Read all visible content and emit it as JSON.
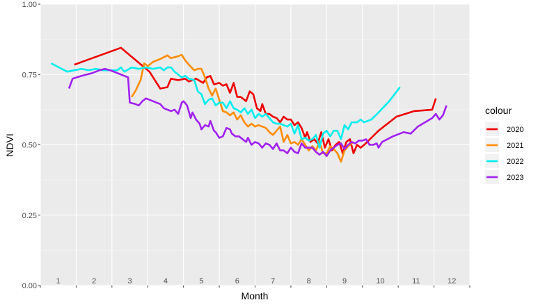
{
  "chart_data": {
    "type": "line",
    "xlabel": "Month",
    "ylabel": "NDVI",
    "ylim": [
      0,
      1
    ],
    "xlim": [
      0.55,
      12.55
    ],
    "x_tick_labels": [
      "1",
      "2",
      "3",
      "4",
      "5",
      "6",
      "7",
      "8",
      "9",
      "10",
      "11",
      "12"
    ],
    "y_ticks": [
      0.0,
      0.25,
      0.5,
      0.75,
      1.0
    ],
    "y_tick_labels": [
      "0.00",
      "0.25",
      "0.50",
      "0.75",
      "1.00"
    ],
    "grid": true,
    "legend_title": "colour",
    "legend_position": "right",
    "series": [
      {
        "name": "2020",
        "color": "#ee0000",
        "points": [
          [
            1.5,
            0.785
          ],
          [
            2.8,
            0.845
          ],
          [
            3.6,
            0.76
          ],
          [
            3.9,
            0.7
          ],
          [
            4.1,
            0.705
          ],
          [
            4.2,
            0.735
          ],
          [
            4.4,
            0.73
          ],
          [
            4.6,
            0.735
          ],
          [
            4.7,
            0.725
          ],
          [
            4.9,
            0.735
          ],
          [
            5.1,
            0.72
          ],
          [
            5.2,
            0.74
          ],
          [
            5.3,
            0.745
          ],
          [
            5.4,
            0.715
          ],
          [
            5.55,
            0.72
          ],
          [
            5.65,
            0.71
          ],
          [
            5.75,
            0.715
          ],
          [
            5.85,
            0.685
          ],
          [
            5.95,
            0.72
          ],
          [
            6.05,
            0.67
          ],
          [
            6.15,
            0.67
          ],
          [
            6.3,
            0.655
          ],
          [
            6.4,
            0.69
          ],
          [
            6.5,
            0.68
          ],
          [
            6.6,
            0.63
          ],
          [
            6.7,
            0.62
          ],
          [
            6.75,
            0.645
          ],
          [
            6.85,
            0.61
          ],
          [
            6.95,
            0.61
          ],
          [
            7.05,
            0.6
          ],
          [
            7.15,
            0.595
          ],
          [
            7.25,
            0.58
          ],
          [
            7.35,
            0.6
          ],
          [
            7.45,
            0.59
          ],
          [
            7.55,
            0.59
          ],
          [
            7.65,
            0.57
          ],
          [
            7.75,
            0.58
          ],
          [
            7.85,
            0.56
          ],
          [
            7.95,
            0.525
          ],
          [
            8.0,
            0.545
          ],
          [
            8.1,
            0.51
          ],
          [
            8.2,
            0.52
          ],
          [
            8.3,
            0.505
          ],
          [
            8.4,
            0.545
          ],
          [
            8.5,
            0.49
          ],
          [
            8.6,
            0.52
          ],
          [
            8.7,
            0.48
          ],
          [
            8.8,
            0.5
          ],
          [
            8.9,
            0.51
          ],
          [
            9.0,
            0.47
          ],
          [
            9.1,
            0.51
          ],
          [
            9.2,
            0.52
          ],
          [
            9.3,
            0.47
          ],
          [
            9.4,
            0.5
          ],
          [
            9.5,
            0.49
          ],
          [
            9.6,
            0.5
          ],
          [
            10.0,
            0.55
          ],
          [
            10.5,
            0.6
          ],
          [
            11.0,
            0.62
          ],
          [
            11.5,
            0.625
          ],
          [
            11.6,
            0.665
          ]
        ]
      },
      {
        "name": "2021",
        "color": "#ff8c00",
        "points": [
          [
            3.1,
            0.67
          ],
          [
            3.2,
            0.69
          ],
          [
            3.35,
            0.73
          ],
          [
            3.45,
            0.79
          ],
          [
            3.55,
            0.78
          ],
          [
            3.7,
            0.795
          ],
          [
            3.9,
            0.805
          ],
          [
            4.1,
            0.818
          ],
          [
            4.2,
            0.808
          ],
          [
            4.4,
            0.815
          ],
          [
            4.5,
            0.82
          ],
          [
            4.6,
            0.8
          ],
          [
            4.7,
            0.785
          ],
          [
            4.85,
            0.765
          ],
          [
            4.95,
            0.77
          ],
          [
            5.05,
            0.77
          ],
          [
            5.15,
            0.74
          ],
          [
            5.25,
            0.7
          ],
          [
            5.35,
            0.675
          ],
          [
            5.45,
            0.7
          ],
          [
            5.55,
            0.66
          ],
          [
            5.65,
            0.62
          ],
          [
            5.75,
            0.615
          ],
          [
            5.85,
            0.605
          ],
          [
            5.95,
            0.615
          ],
          [
            6.05,
            0.59
          ],
          [
            6.15,
            0.605
          ],
          [
            6.25,
            0.58
          ],
          [
            6.35,
            0.565
          ],
          [
            6.45,
            0.575
          ],
          [
            6.55,
            0.565
          ],
          [
            6.65,
            0.57
          ],
          [
            6.75,
            0.565
          ],
          [
            6.85,
            0.56
          ],
          [
            6.95,
            0.545
          ],
          [
            7.05,
            0.535
          ],
          [
            7.15,
            0.55
          ],
          [
            7.25,
            0.565
          ],
          [
            7.35,
            0.51
          ],
          [
            7.45,
            0.535
          ],
          [
            7.55,
            0.505
          ],
          [
            7.65,
            0.51
          ],
          [
            7.75,
            0.5
          ],
          [
            7.85,
            0.52
          ],
          [
            7.95,
            0.5
          ],
          [
            8.05,
            0.48
          ],
          [
            8.15,
            0.495
          ],
          [
            8.25,
            0.48
          ],
          [
            8.35,
            0.51
          ],
          [
            8.45,
            0.47
          ],
          [
            8.55,
            0.47
          ],
          [
            8.65,
            0.495
          ],
          [
            8.75,
            0.485
          ],
          [
            8.85,
            0.47
          ],
          [
            8.95,
            0.44
          ],
          [
            9.05,
            0.48
          ],
          [
            9.15,
            0.495
          ],
          [
            9.3,
            0.51
          ]
        ]
      },
      {
        "name": "2022",
        "color": "#00eeee",
        "points": [
          [
            0.85,
            0.79
          ],
          [
            1.3,
            0.76
          ],
          [
            1.5,
            0.765
          ],
          [
            1.7,
            0.77
          ],
          [
            1.9,
            0.765
          ],
          [
            2.1,
            0.77
          ],
          [
            2.3,
            0.765
          ],
          [
            2.5,
            0.765
          ],
          [
            2.7,
            0.765
          ],
          [
            2.8,
            0.775
          ],
          [
            2.9,
            0.76
          ],
          [
            3.1,
            0.775
          ],
          [
            3.3,
            0.77
          ],
          [
            3.5,
            0.775
          ],
          [
            3.7,
            0.77
          ],
          [
            3.9,
            0.775
          ],
          [
            4.0,
            0.765
          ],
          [
            4.1,
            0.775
          ],
          [
            4.2,
            0.775
          ],
          [
            4.3,
            0.76
          ],
          [
            4.5,
            0.74
          ],
          [
            4.6,
            0.745
          ],
          [
            4.7,
            0.735
          ],
          [
            4.85,
            0.73
          ],
          [
            4.95,
            0.69
          ],
          [
            5.05,
            0.68
          ],
          [
            5.15,
            0.645
          ],
          [
            5.25,
            0.66
          ],
          [
            5.35,
            0.665
          ],
          [
            5.45,
            0.64
          ],
          [
            5.55,
            0.65
          ],
          [
            5.65,
            0.65
          ],
          [
            5.75,
            0.63
          ],
          [
            5.85,
            0.655
          ],
          [
            5.95,
            0.63
          ],
          [
            6.05,
            0.625
          ],
          [
            6.15,
            0.615
          ],
          [
            6.25,
            0.63
          ],
          [
            6.35,
            0.61
          ],
          [
            6.45,
            0.625
          ],
          [
            6.55,
            0.595
          ],
          [
            6.65,
            0.61
          ],
          [
            6.75,
            0.6
          ],
          [
            6.85,
            0.61
          ],
          [
            6.95,
            0.595
          ],
          [
            7.05,
            0.58
          ],
          [
            7.15,
            0.575
          ],
          [
            7.25,
            0.575
          ],
          [
            7.35,
            0.57
          ],
          [
            7.45,
            0.565
          ],
          [
            7.55,
            0.575
          ],
          [
            7.65,
            0.54
          ],
          [
            7.75,
            0.57
          ],
          [
            7.85,
            0.52
          ],
          [
            7.95,
            0.525
          ],
          [
            8.05,
            0.515
          ],
          [
            8.15,
            0.52
          ],
          [
            8.25,
            0.535
          ],
          [
            8.35,
            0.49
          ],
          [
            8.45,
            0.54
          ],
          [
            8.55,
            0.55
          ],
          [
            8.65,
            0.53
          ],
          [
            8.75,
            0.55
          ],
          [
            8.85,
            0.55
          ],
          [
            8.95,
            0.52
          ],
          [
            9.05,
            0.57
          ],
          [
            9.15,
            0.555
          ],
          [
            9.25,
            0.58
          ],
          [
            9.4,
            0.58
          ],
          [
            9.5,
            0.59
          ],
          [
            9.6,
            0.58
          ],
          [
            9.8,
            0.59
          ],
          [
            10.0,
            0.615
          ],
          [
            10.3,
            0.655
          ],
          [
            10.6,
            0.705
          ]
        ]
      },
      {
        "name": "2023",
        "color": "#a020f0",
        "points": [
          [
            1.35,
            0.7
          ],
          [
            1.45,
            0.735
          ],
          [
            1.7,
            0.745
          ],
          [
            2.0,
            0.755
          ],
          [
            2.2,
            0.765
          ],
          [
            2.35,
            0.77
          ],
          [
            2.5,
            0.765
          ],
          [
            2.7,
            0.755
          ],
          [
            2.9,
            0.745
          ],
          [
            3.0,
            0.74
          ],
          [
            3.05,
            0.65
          ],
          [
            3.2,
            0.645
          ],
          [
            3.3,
            0.64
          ],
          [
            3.4,
            0.655
          ],
          [
            3.5,
            0.665
          ],
          [
            3.6,
            0.66
          ],
          [
            3.7,
            0.655
          ],
          [
            3.8,
            0.65
          ],
          [
            3.9,
            0.645
          ],
          [
            4.0,
            0.63
          ],
          [
            4.1,
            0.625
          ],
          [
            4.2,
            0.62
          ],
          [
            4.3,
            0.625
          ],
          [
            4.4,
            0.61
          ],
          [
            4.5,
            0.65
          ],
          [
            4.55,
            0.655
          ],
          [
            4.65,
            0.64
          ],
          [
            4.75,
            0.595
          ],
          [
            4.8,
            0.615
          ],
          [
            4.9,
            0.59
          ],
          [
            5.0,
            0.575
          ],
          [
            5.05,
            0.555
          ],
          [
            5.15,
            0.57
          ],
          [
            5.25,
            0.565
          ],
          [
            5.3,
            0.585
          ],
          [
            5.4,
            0.55
          ],
          [
            5.45,
            0.545
          ],
          [
            5.55,
            0.525
          ],
          [
            5.65,
            0.53
          ],
          [
            5.75,
            0.56
          ],
          [
            5.85,
            0.555
          ],
          [
            5.9,
            0.54
          ],
          [
            6.0,
            0.53
          ],
          [
            6.1,
            0.53
          ],
          [
            6.2,
            0.52
          ],
          [
            6.3,
            0.51
          ],
          [
            6.35,
            0.525
          ],
          [
            6.45,
            0.5
          ],
          [
            6.55,
            0.51
          ],
          [
            6.65,
            0.505
          ],
          [
            6.75,
            0.49
          ],
          [
            6.85,
            0.505
          ],
          [
            6.95,
            0.5
          ],
          [
            7.05,
            0.485
          ],
          [
            7.15,
            0.505
          ],
          [
            7.25,
            0.48
          ],
          [
            7.35,
            0.48
          ],
          [
            7.45,
            0.47
          ],
          [
            7.55,
            0.49
          ],
          [
            7.65,
            0.475
          ],
          [
            7.75,
            0.47
          ],
          [
            7.85,
            0.505
          ],
          [
            7.95,
            0.49
          ],
          [
            8.05,
            0.49
          ],
          [
            8.15,
            0.49
          ],
          [
            8.25,
            0.475
          ],
          [
            8.35,
            0.465
          ],
          [
            8.45,
            0.475
          ],
          [
            8.55,
            0.46
          ],
          [
            8.65,
            0.48
          ],
          [
            8.75,
            0.49
          ],
          [
            8.85,
            0.5
          ],
          [
            8.95,
            0.505
          ],
          [
            9.05,
            0.485
          ],
          [
            9.15,
            0.5
          ],
          [
            9.25,
            0.51
          ],
          [
            9.35,
            0.505
          ],
          [
            9.45,
            0.515
          ],
          [
            9.55,
            0.515
          ],
          [
            9.65,
            0.52
          ],
          [
            9.75,
            0.5
          ],
          [
            9.85,
            0.5
          ],
          [
            9.95,
            0.505
          ],
          [
            10.0,
            0.49
          ],
          [
            10.1,
            0.51
          ],
          [
            10.4,
            0.53
          ],
          [
            10.7,
            0.545
          ],
          [
            10.9,
            0.54
          ],
          [
            11.1,
            0.565
          ],
          [
            11.3,
            0.58
          ],
          [
            11.5,
            0.595
          ],
          [
            11.6,
            0.61
          ],
          [
            11.7,
            0.59
          ],
          [
            11.8,
            0.605
          ],
          [
            11.9,
            0.64
          ]
        ]
      }
    ]
  }
}
